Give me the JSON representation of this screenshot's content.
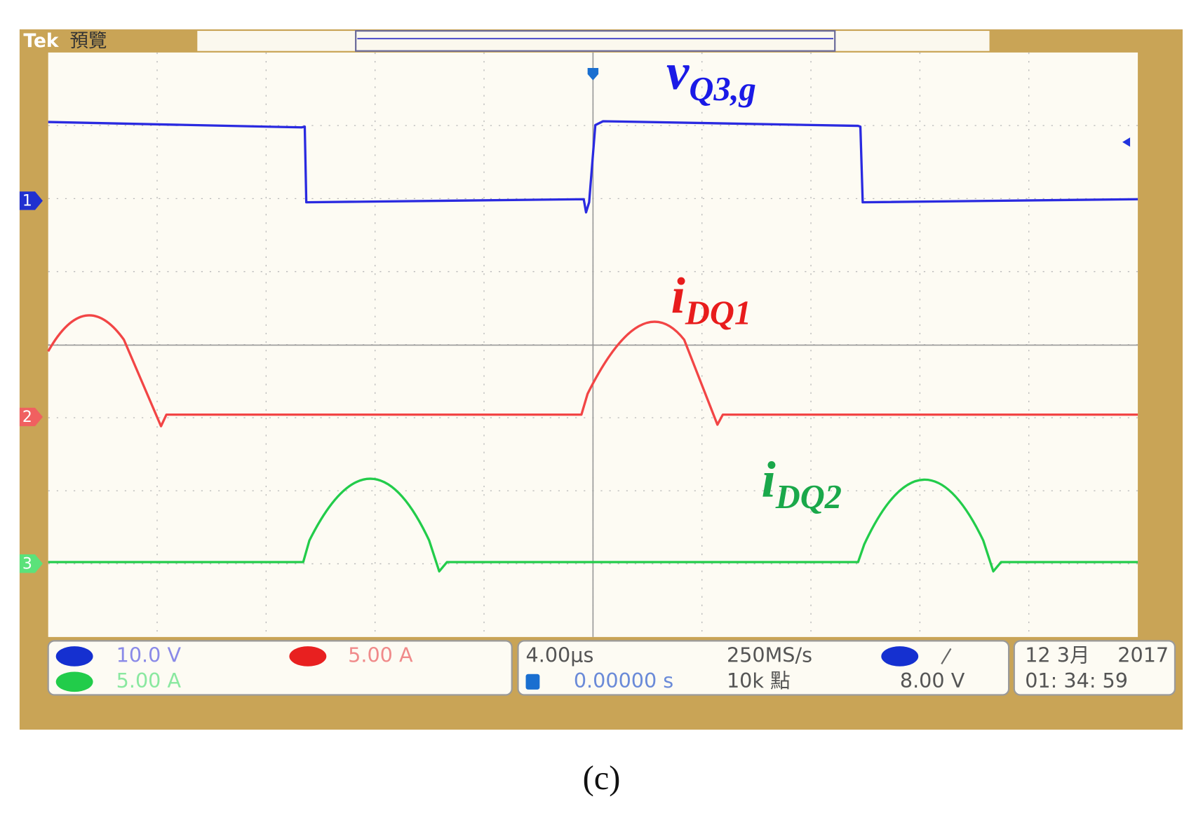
{
  "header": {
    "brand": "Tek",
    "mode": "預覽"
  },
  "channel_markers": [
    "1",
    "2",
    "3"
  ],
  "trace_labels": [
    {
      "main": "v",
      "sub": "Q3,g"
    },
    {
      "main": "i",
      "sub": "DQ1"
    },
    {
      "main": "i",
      "sub": "DQ2"
    }
  ],
  "status": {
    "ch1_scale": "10.0 V",
    "ch2_scale": "5.00 A",
    "ch3_scale": "5.00 A",
    "time_scale": "4.00µs",
    "sample_rate": "250MS/s",
    "delay": "0.00000 s",
    "record_length": "10k 點",
    "trigger_level": "8.00 V",
    "date": "12 3月",
    "year": "2017",
    "time": "01: 34: 59"
  },
  "caption": "(c)"
}
